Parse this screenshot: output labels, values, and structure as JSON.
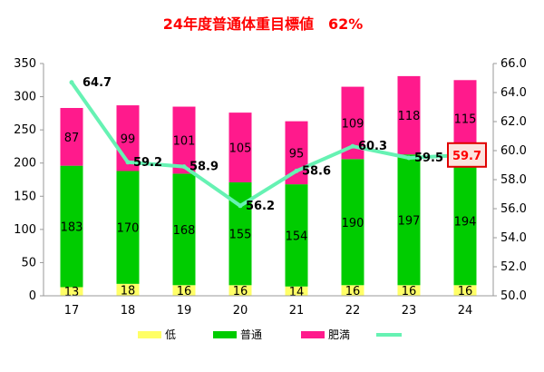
{
  "title": "24年度普通体重目標値　62%",
  "colors": {
    "title": "#ff0000",
    "low": "#ffff66",
    "normal": "#00cc00",
    "obese": "#ff1a8c",
    "line": "#66f2b3",
    "highlight_border": "#e00000",
    "highlight_text": "#ff0000",
    "highlight_bg": "#fbe3df"
  },
  "chart_data": {
    "type": "bar",
    "stacked": true,
    "categories": [
      "17",
      "18",
      "19",
      "20",
      "21",
      "22",
      "23",
      "24"
    ],
    "series": [
      {
        "name": "低",
        "key": "low",
        "values": [
          13,
          18,
          16,
          16,
          14,
          16,
          16,
          16
        ]
      },
      {
        "name": "普通",
        "key": "normal",
        "values": [
          183,
          170,
          168,
          155,
          154,
          190,
          197,
          194
        ]
      },
      {
        "name": "肥満",
        "key": "obese",
        "values": [
          87,
          99,
          101,
          105,
          95,
          109,
          118,
          115
        ]
      }
    ],
    "line_series": {
      "name": "",
      "axis": "right",
      "values": [
        64.7,
        59.2,
        58.9,
        56.2,
        58.6,
        60.3,
        59.5,
        59.7
      ],
      "labels": [
        "64.7",
        "59.2",
        "58.9",
        "56.2",
        "58.6",
        "60.3",
        "59.5",
        "59.7"
      ]
    },
    "highlight_index": 7,
    "ylim": [
      0,
      350
    ],
    "y_ticks": [
      "0",
      "50",
      "100",
      "150",
      "200",
      "250",
      "300",
      "350"
    ],
    "y2lim": [
      50,
      66
    ],
    "y2_ticks": [
      "50.0",
      "52.0",
      "54.0",
      "56.0",
      "58.0",
      "60.0",
      "62.0",
      "64.0",
      "66.0"
    ],
    "legend_position": "bottom",
    "grid": false
  }
}
